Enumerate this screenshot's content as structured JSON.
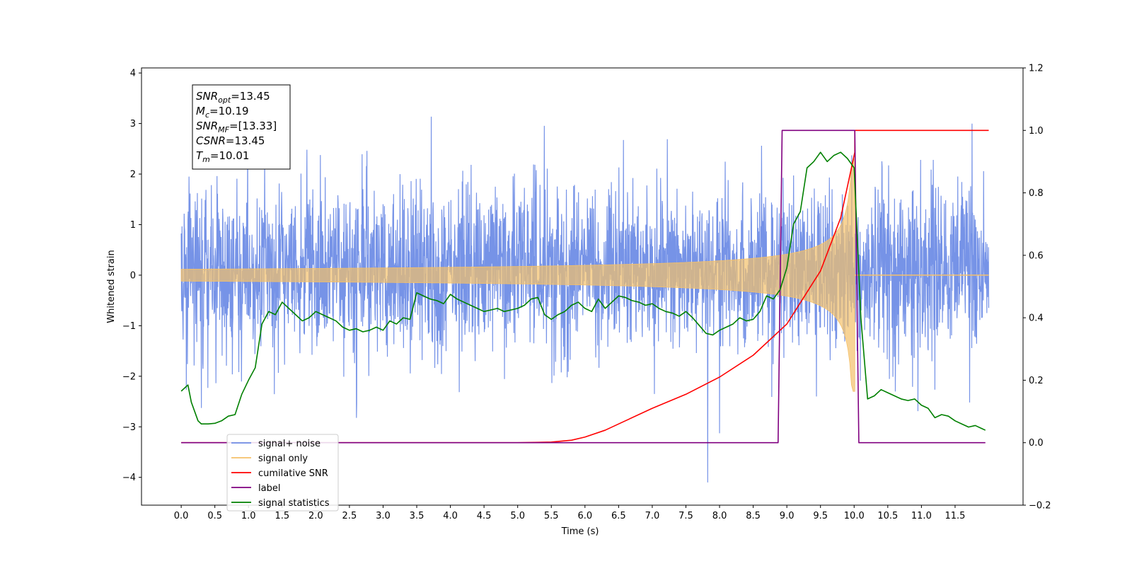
{
  "chart_data": {
    "type": "line",
    "title": "",
    "xlabel": "Time (s)",
    "ylabel": "Whitened strain",
    "xlim": [
      -0.59,
      12.51
    ],
    "ylim_left": [
      -4.55,
      4.1
    ],
    "ylim_right": [
      -0.2,
      1.2
    ],
    "xticks": [
      0.0,
      0.5,
      1.0,
      1.5,
      2.0,
      2.5,
      3.0,
      3.5,
      4.0,
      4.5,
      5.0,
      5.5,
      6.0,
      6.5,
      7.0,
      7.5,
      8.0,
      8.5,
      9.0,
      9.5,
      10.0,
      10.5,
      11.0,
      11.5
    ],
    "xtick_labels": [
      "0.0",
      "0.5",
      "1.0",
      "1.5",
      "2.0",
      "2.5",
      "3.0",
      "3.5",
      "4.0",
      "4.5",
      "5.0",
      "5.5",
      "6.0",
      "6.5",
      "7.0",
      "7.5",
      "8.0",
      "8.5",
      "9.0",
      "9.5",
      "10.0",
      "10.5",
      "11.0",
      "11.5"
    ],
    "yticks_left": [
      -4,
      -3,
      -2,
      -1,
      0,
      1,
      2,
      3,
      4
    ],
    "ytick_labels_left": [
      "−4",
      "−3",
      "−2",
      "−1",
      "0",
      "1",
      "2",
      "3",
      "4"
    ],
    "yticks_right": [
      -0.2,
      0.0,
      0.2,
      0.4,
      0.6,
      0.8,
      1.0,
      1.2
    ],
    "ytick_labels_right": [
      "−0.2",
      "0.0",
      "0.2",
      "0.4",
      "0.6",
      "0.8",
      "1.0",
      "1.2"
    ],
    "grid": false,
    "legend_position": "lower-left",
    "annotation": [
      {
        "base": "SNR",
        "sub": "opt",
        "value": "=13.45"
      },
      {
        "base": "M",
        "sub": "c",
        "value": "=10.19"
      },
      {
        "base": "SNR",
        "sub": "MF",
        "value": "=[13.33]"
      },
      {
        "base": "CSNR",
        "sub": "",
        "value": "=13.45"
      },
      {
        "base": "T",
        "sub": "m",
        "value": "=10.01"
      }
    ],
    "noise_band": {
      "x_range": [
        0.0,
        12.0
      ],
      "typical_amplitude": 1.6,
      "max_value": 3.45,
      "min_value": -4.1
    },
    "chirp": {
      "x_range": [
        0.0,
        10.01
      ],
      "merger_time": 10.01,
      "peak_amplitude": 2.3
    },
    "series": [
      {
        "name": "signal+ noise",
        "axis": "left",
        "color": "#6f8de6",
        "style": "noise"
      },
      {
        "name": "signal only",
        "axis": "left",
        "color": "#f4c06a",
        "style": "chirp"
      },
      {
        "name": "cumilative SNR",
        "axis": "right",
        "color": "#ff0000",
        "x": [
          0.0,
          5.0,
          5.5,
          5.8,
          6.0,
          6.3,
          6.6,
          7.0,
          7.5,
          8.0,
          8.5,
          9.0,
          9.5,
          9.8,
          10.01,
          10.01,
          12.0
        ],
        "y": [
          0.0,
          0.0,
          0.002,
          0.008,
          0.018,
          0.04,
          0.07,
          0.11,
          0.155,
          0.21,
          0.28,
          0.38,
          0.55,
          0.72,
          0.93,
          1.0,
          1.0
        ]
      },
      {
        "name": "label",
        "axis": "right",
        "color": "#800080",
        "x": [
          0.0,
          8.87,
          8.93,
          10.01,
          10.07,
          11.95
        ],
        "y": [
          0.0,
          0.0,
          1.0,
          1.0,
          0.0,
          0.0
        ]
      },
      {
        "name": "signal statistics",
        "axis": "right",
        "color": "#008000",
        "x": [
          0.0,
          0.1,
          0.15,
          0.25,
          0.3,
          0.4,
          0.5,
          0.6,
          0.7,
          0.8,
          0.9,
          1.0,
          1.1,
          1.2,
          1.3,
          1.4,
          1.5,
          1.6,
          1.7,
          1.8,
          1.9,
          2.0,
          2.1,
          2.2,
          2.3,
          2.4,
          2.5,
          2.6,
          2.7,
          2.8,
          2.9,
          3.0,
          3.1,
          3.2,
          3.3,
          3.4,
          3.5,
          3.6,
          3.7,
          3.8,
          3.9,
          4.0,
          4.1,
          4.2,
          4.3,
          4.4,
          4.5,
          4.6,
          4.7,
          4.8,
          4.9,
          5.0,
          5.1,
          5.2,
          5.3,
          5.4,
          5.5,
          5.6,
          5.7,
          5.8,
          5.9,
          6.0,
          6.1,
          6.2,
          6.3,
          6.4,
          6.5,
          6.6,
          6.7,
          6.8,
          6.9,
          7.0,
          7.1,
          7.2,
          7.3,
          7.4,
          7.5,
          7.6,
          7.7,
          7.8,
          7.9,
          8.0,
          8.1,
          8.2,
          8.3,
          8.4,
          8.5,
          8.6,
          8.7,
          8.8,
          8.9,
          9.0,
          9.1,
          9.2,
          9.3,
          9.4,
          9.5,
          9.6,
          9.7,
          9.8,
          9.9,
          10.0,
          10.1,
          10.2,
          10.3,
          10.4,
          10.5,
          10.6,
          10.7,
          10.8,
          10.9,
          11.0,
          11.1,
          11.2,
          11.3,
          11.4,
          11.5,
          11.6,
          11.7,
          11.8,
          11.9,
          11.95
        ],
        "y": [
          0.165,
          0.185,
          0.13,
          0.07,
          0.06,
          0.06,
          0.062,
          0.07,
          0.085,
          0.09,
          0.155,
          0.2,
          0.24,
          0.38,
          0.42,
          0.41,
          0.45,
          0.43,
          0.41,
          0.39,
          0.4,
          0.42,
          0.41,
          0.4,
          0.39,
          0.37,
          0.36,
          0.365,
          0.355,
          0.36,
          0.37,
          0.36,
          0.39,
          0.38,
          0.4,
          0.395,
          0.48,
          0.47,
          0.46,
          0.455,
          0.445,
          0.475,
          0.46,
          0.45,
          0.44,
          0.43,
          0.42,
          0.425,
          0.43,
          0.42,
          0.425,
          0.43,
          0.44,
          0.46,
          0.465,
          0.41,
          0.395,
          0.41,
          0.42,
          0.44,
          0.45,
          0.43,
          0.42,
          0.46,
          0.43,
          0.45,
          0.47,
          0.465,
          0.455,
          0.45,
          0.44,
          0.445,
          0.43,
          0.42,
          0.415,
          0.405,
          0.42,
          0.4,
          0.375,
          0.35,
          0.345,
          0.36,
          0.37,
          0.38,
          0.4,
          0.39,
          0.395,
          0.42,
          0.47,
          0.46,
          0.49,
          0.56,
          0.7,
          0.74,
          0.88,
          0.9,
          0.93,
          0.9,
          0.92,
          0.93,
          0.91,
          0.88,
          0.4,
          0.14,
          0.15,
          0.17,
          0.16,
          0.15,
          0.14,
          0.135,
          0.14,
          0.12,
          0.11,
          0.08,
          0.09,
          0.085,
          0.07,
          0.06,
          0.05,
          0.055,
          0.045,
          0.04
        ]
      }
    ]
  },
  "legend": [
    {
      "label": "signal+ noise",
      "color": "#6f8de6"
    },
    {
      "label": "signal only",
      "color": "#f4c06a"
    },
    {
      "label": "cumilative SNR",
      "color": "#ff0000"
    },
    {
      "label": "label",
      "color": "#800080"
    },
    {
      "label": "signal statistics",
      "color": "#008000"
    }
  ]
}
